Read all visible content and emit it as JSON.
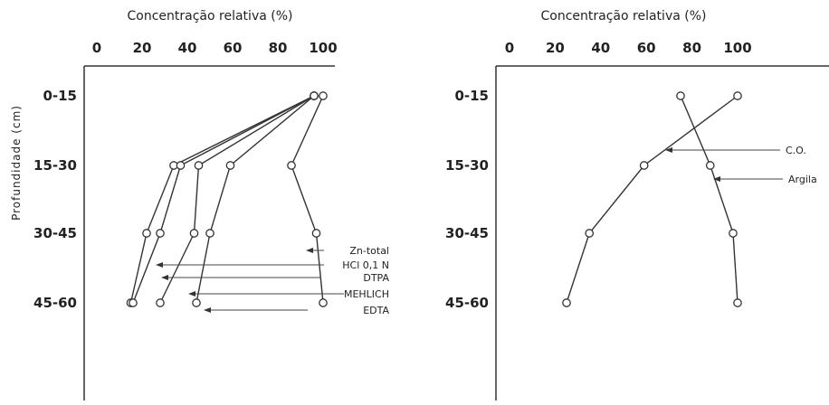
{
  "chart_data": [
    {
      "type": "line",
      "xlabel": "Concentração relativa (%)",
      "ylabel": "Profundidade (cm)",
      "xticks": [
        "0",
        "20",
        "40",
        "60",
        "80",
        "100"
      ],
      "categories": [
        "0-15",
        "15-30",
        "30-45",
        "45-60"
      ],
      "xlim": [
        0,
        100
      ],
      "series": [
        {
          "name": "Zn-total",
          "values": [
            100,
            86,
            97,
            100
          ]
        },
        {
          "name": "HCl 0,1 N",
          "values": [
            96,
            34,
            22,
            15
          ]
        },
        {
          "name": "DTPA",
          "values": [
            96,
            37,
            28,
            16
          ]
        },
        {
          "name": "MEHLICH",
          "values": [
            96,
            45,
            43,
            28
          ]
        },
        {
          "name": "EDTA",
          "values": [
            96,
            59,
            50,
            44
          ]
        }
      ]
    },
    {
      "type": "line",
      "xlabel": "Concentração relativa (%)",
      "xticks": [
        "0",
        "20",
        "40",
        "60",
        "80",
        "100"
      ],
      "categories": [
        "0-15",
        "15-30",
        "30-45",
        "45-60"
      ],
      "xlim": [
        0,
        100
      ],
      "series": [
        {
          "name": "C.O.",
          "values": [
            100,
            59,
            35,
            25
          ]
        },
        {
          "name": "Argila",
          "values": [
            75,
            88,
            98,
            100
          ]
        }
      ]
    }
  ]
}
